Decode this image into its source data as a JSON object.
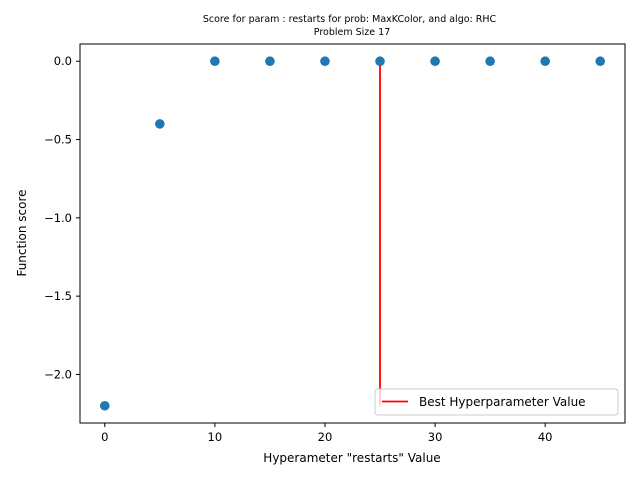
{
  "chart_data": {
    "type": "scatter",
    "title": "Score for param : restarts for prob: MaxKColor, and algo: RHC",
    "subtitle": "Problem Size 17",
    "xlabel": "Hyperameter \"restarts\" Value",
    "ylabel": "Function score",
    "xlim": [
      -2.25,
      47.25
    ],
    "ylim": [
      -2.31,
      0.11
    ],
    "xticks": [
      0,
      10,
      20,
      30,
      40
    ],
    "xtick_labels": [
      "0",
      "10",
      "20",
      "30",
      "40"
    ],
    "yticks": [
      0.0,
      -0.5,
      -1.0,
      -1.5,
      -2.0
    ],
    "ytick_labels": [
      "0.0",
      "−0.5",
      "−1.0",
      "−1.5",
      "−2.0"
    ],
    "grid": false,
    "series": [
      {
        "x": [
          0,
          5,
          10,
          15,
          20,
          25,
          30,
          35,
          40,
          45
        ],
        "y": [
          -2.2,
          -0.4,
          0.0,
          0.0,
          0.0,
          0.0,
          0.0,
          0.0,
          0.0,
          0.0
        ],
        "color": "#1f77b4"
      }
    ],
    "vline": {
      "x": 25,
      "y_from": -2.2,
      "y_to": 0.0,
      "color": "#ff0000",
      "label": "Best Hyperparameter Value"
    },
    "legend": {
      "position": "bottom-right",
      "entries": [
        "Best Hyperparameter Value"
      ]
    }
  }
}
